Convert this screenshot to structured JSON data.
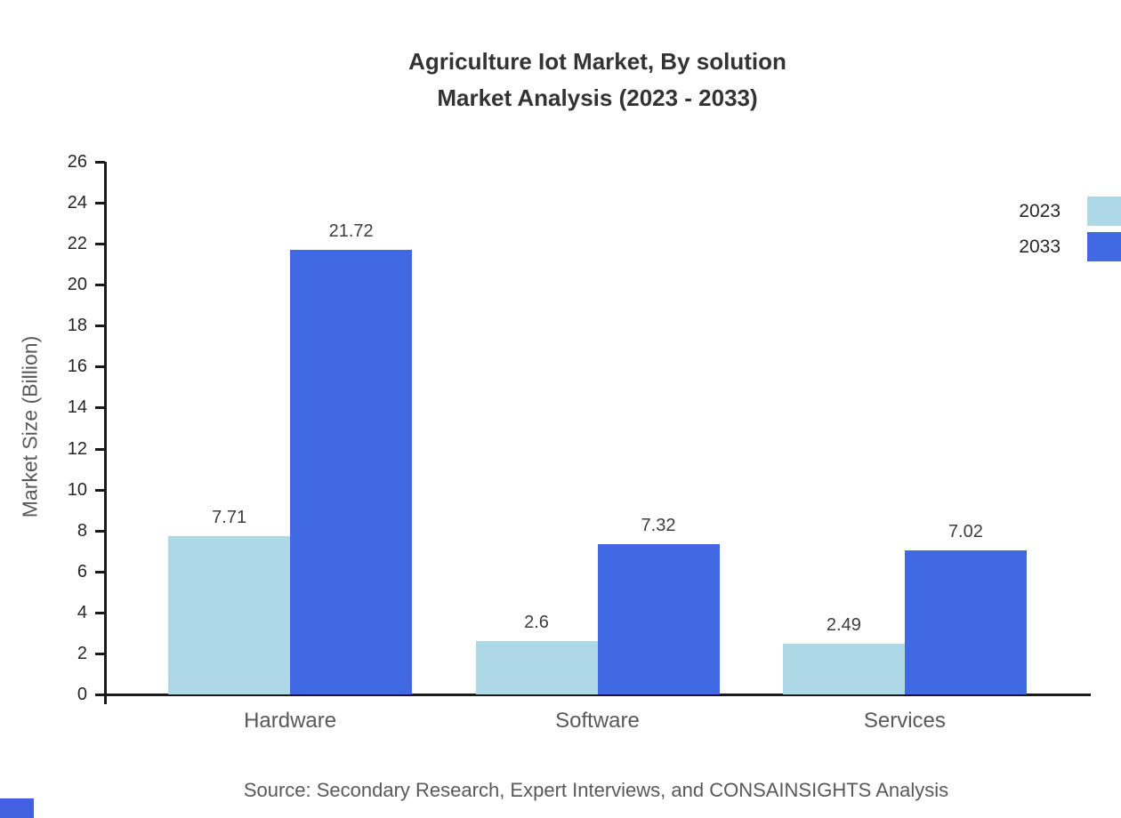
{
  "header": {
    "title": "Agriculture Iot Market, By solution",
    "subtitle": "Market Analysis (2023 - 2033)"
  },
  "footer": {
    "source": "Source: Secondary Research, Expert Interviews, and CONSAINSIGHTS Analysis"
  },
  "decor": {
    "corner_color": "#4161E1"
  },
  "chart_data": {
    "type": "bar",
    "title": "Agriculture Iot Market, By solution Market Analysis (2023 - 2033)",
    "categories": [
      "Hardware",
      "Software",
      "Services"
    ],
    "series": [
      {
        "name": "2023",
        "color": "#ADD8E6",
        "values": [
          7.71,
          2.6,
          2.49
        ]
      },
      {
        "name": "2033",
        "color": "#4169E1",
        "values": [
          21.72,
          7.32,
          7.02
        ]
      }
    ],
    "xlabel": "",
    "ylabel": "Market Size (Billion)",
    "ylim": [
      0,
      26
    ],
    "ytick_step": 2,
    "grid": false,
    "legend_position": "top-right",
    "axis_color": "#1a1a1a"
  }
}
